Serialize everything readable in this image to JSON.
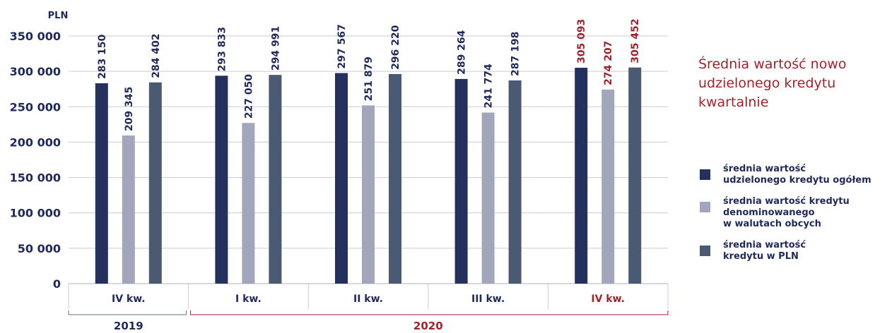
{
  "colors": {
    "total": "#24305e",
    "foreign": "#a2a6ba",
    "pln": "#4a5a73",
    "text": "#1f2a5a",
    "accent": "#a3222b",
    "grid": "#c8cbd6"
  },
  "side_title": "Średnia wartość nowo udzielonego kredytu kwartalnie",
  "chart_data": {
    "type": "bar",
    "title": "Średnia wartość nowo udzielonego kredytu kwartalnie",
    "ylabel": "PLN",
    "ylim": [
      0,
      350000
    ],
    "yticks": [
      0,
      50000,
      100000,
      150000,
      200000,
      250000,
      300000,
      350000
    ],
    "ytick_labels": [
      "0",
      "50 000",
      "100 000",
      "150 000",
      "200 000",
      "250 000",
      "300 000",
      "350 000"
    ],
    "categories": [
      "IV kw.",
      "I kw.",
      "II kw.",
      "III kw.",
      "IV kw."
    ],
    "highlight_category_index": 4,
    "years": [
      {
        "label": "2019",
        "from": 0,
        "to": 0
      },
      {
        "label": "2020",
        "from": 1,
        "to": 4
      }
    ],
    "series": [
      {
        "name": "średnia wartość udzielonego kredytu ogółem",
        "values": [
          283150,
          293833,
          297567,
          289264,
          305093
        ],
        "value_labels": [
          "283 150",
          "293 833",
          "297 567",
          "289 264",
          "305 093"
        ]
      },
      {
        "name": "średnia wartość kredytu denominowanego w walutach obcych",
        "values": [
          209345,
          227050,
          251879,
          241774,
          274207
        ],
        "value_labels": [
          "209 345",
          "227 050",
          "251 879",
          "241 774",
          "274 207"
        ]
      },
      {
        "name": "średnia wartość kredytu w PLN",
        "values": [
          284402,
          294991,
          296220,
          287198,
          305452
        ],
        "value_labels": [
          "284 402",
          "294 991",
          "296 220",
          "287 198",
          "305 452"
        ]
      }
    ],
    "grid": true,
    "legend_position": "right"
  },
  "legend": [
    {
      "label": "średnia wartość\nudzielonego kredytu ogółem"
    },
    {
      "label": "średnia wartość kredytu\ndenominowanego\nw walutach obcych"
    },
    {
      "label": "średnia wartość\nkredytu w PLN"
    }
  ]
}
